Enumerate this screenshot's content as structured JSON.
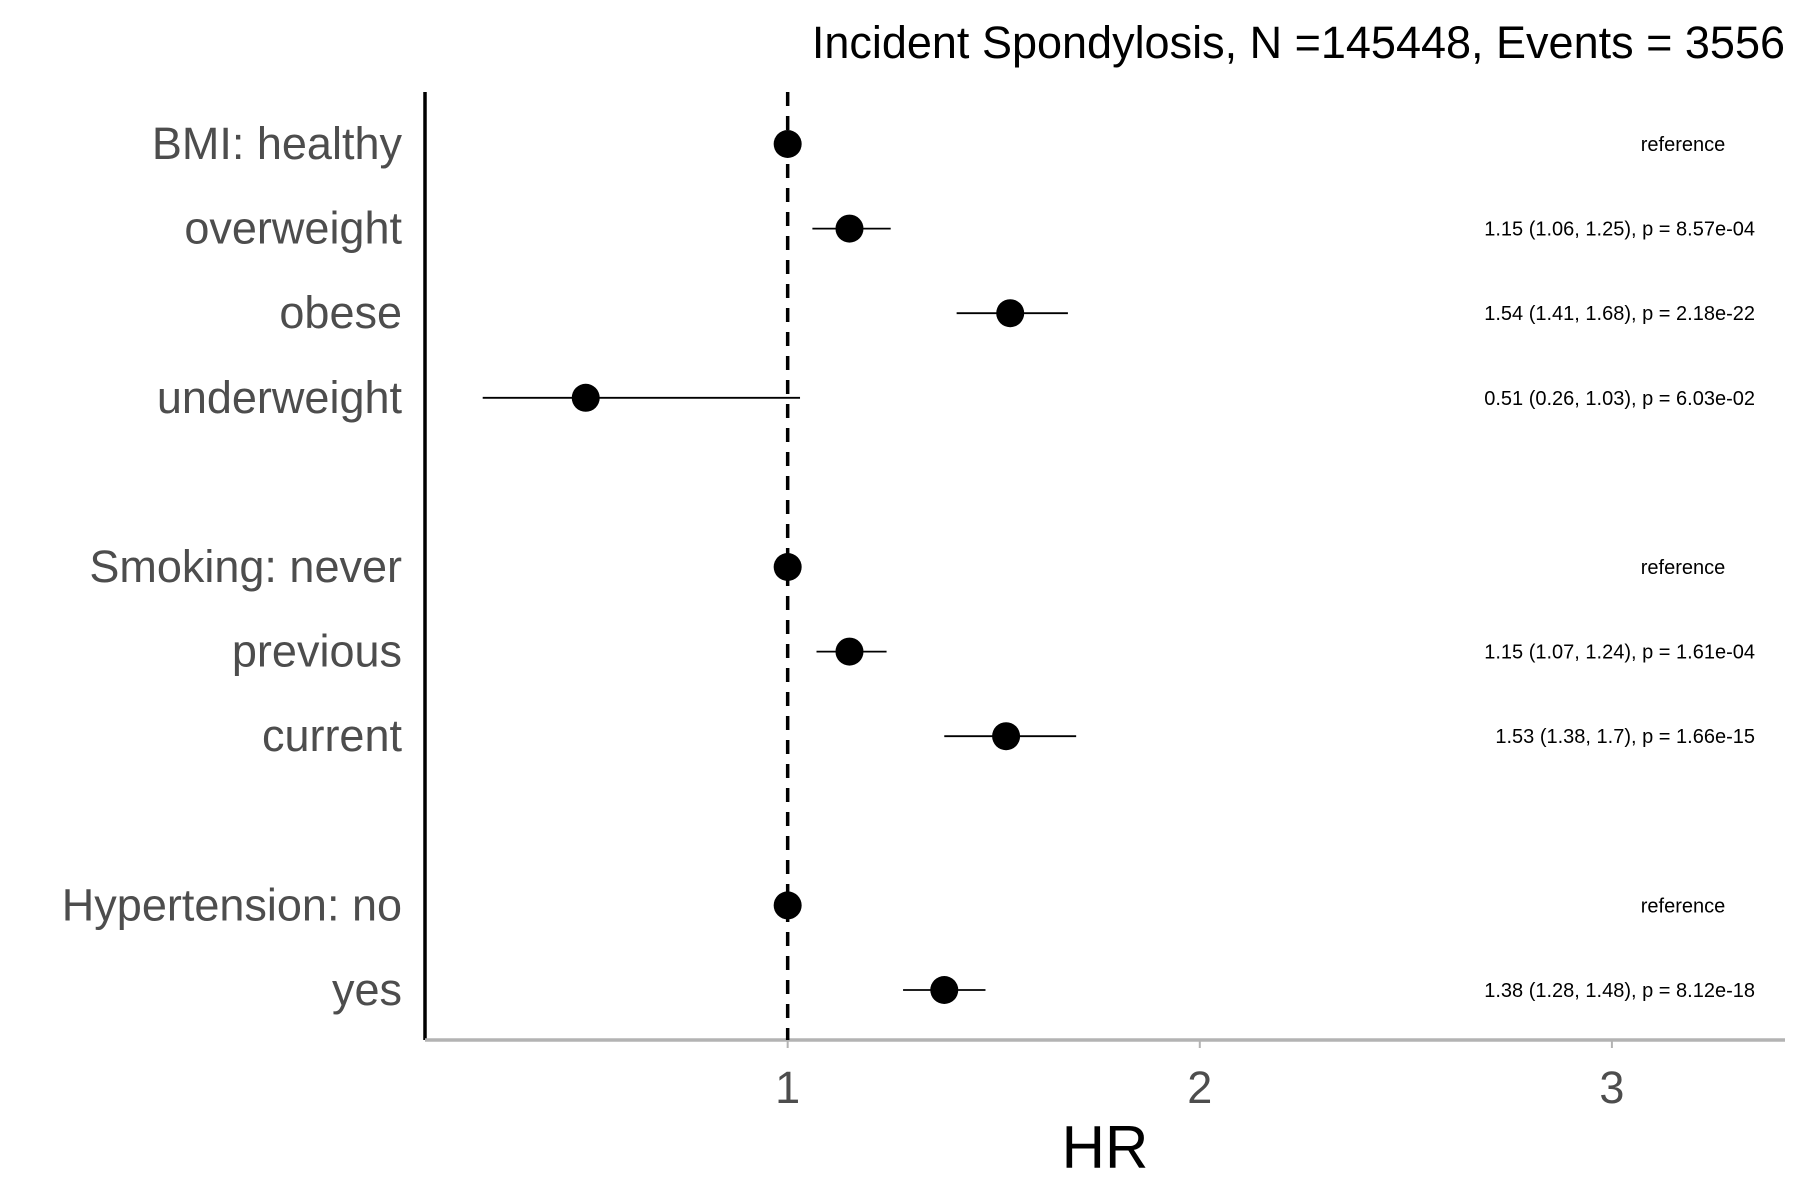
{
  "chart_data": {
    "type": "scatter",
    "subtype": "forest-plot",
    "title": "Incident Spondylosis, N =145448, Events = 3556",
    "xlabel": "HR",
    "ylabel": "",
    "xlim": [
      0.12,
      3.42
    ],
    "x_ticks": [
      1,
      2,
      3
    ],
    "x_tick_labels": [
      "1",
      "2",
      "3"
    ],
    "reference_line_x": 1,
    "grid": false,
    "legend": false,
    "colors": {
      "point": "#000000",
      "ci_line": "#000000",
      "reference_line": "#000000",
      "row_label": "#4d4d4d",
      "tick_label": "#4d4d4d",
      "x_axis": "#b3b3b3",
      "y_axis": "#000000"
    },
    "rows": [
      {
        "label": "BMI: healthy",
        "hr": 1.0,
        "lower": null,
        "upper": null,
        "annotation": "reference",
        "reference": true,
        "slot": 0
      },
      {
        "label": "overweight",
        "hr": 1.15,
        "lower": 1.06,
        "upper": 1.25,
        "annotation": "1.15 (1.06, 1.25), p = 8.57e-04",
        "reference": false,
        "slot": 1
      },
      {
        "label": "obese",
        "hr": 1.54,
        "lower": 1.41,
        "upper": 1.68,
        "annotation": "1.54 (1.41, 1.68), p = 2.18e-22",
        "reference": false,
        "slot": 2
      },
      {
        "label": "underweight",
        "hr": 0.51,
        "lower": 0.26,
        "upper": 1.03,
        "annotation": "0.51 (0.26, 1.03), p = 6.03e-02",
        "reference": false,
        "slot": 3
      },
      {
        "label": "Smoking: never",
        "hr": 1.0,
        "lower": null,
        "upper": null,
        "annotation": "reference",
        "reference": true,
        "slot": 5
      },
      {
        "label": "previous",
        "hr": 1.15,
        "lower": 1.07,
        "upper": 1.24,
        "annotation": "1.15 (1.07, 1.24), p = 1.61e-04",
        "reference": false,
        "slot": 6
      },
      {
        "label": "current",
        "hr": 1.53,
        "lower": 1.38,
        "upper": 1.7,
        "annotation": "1.53 (1.38, 1.7), p = 1.66e-15",
        "reference": false,
        "slot": 7
      },
      {
        "label": "Hypertension: no",
        "hr": 1.0,
        "lower": null,
        "upper": null,
        "annotation": "reference",
        "reference": true,
        "slot": 9
      },
      {
        "label": "yes",
        "hr": 1.38,
        "lower": 1.28,
        "upper": 1.48,
        "annotation": "1.38 (1.28, 1.48), p = 8.12e-18",
        "reference": false,
        "slot": 10
      }
    ]
  }
}
